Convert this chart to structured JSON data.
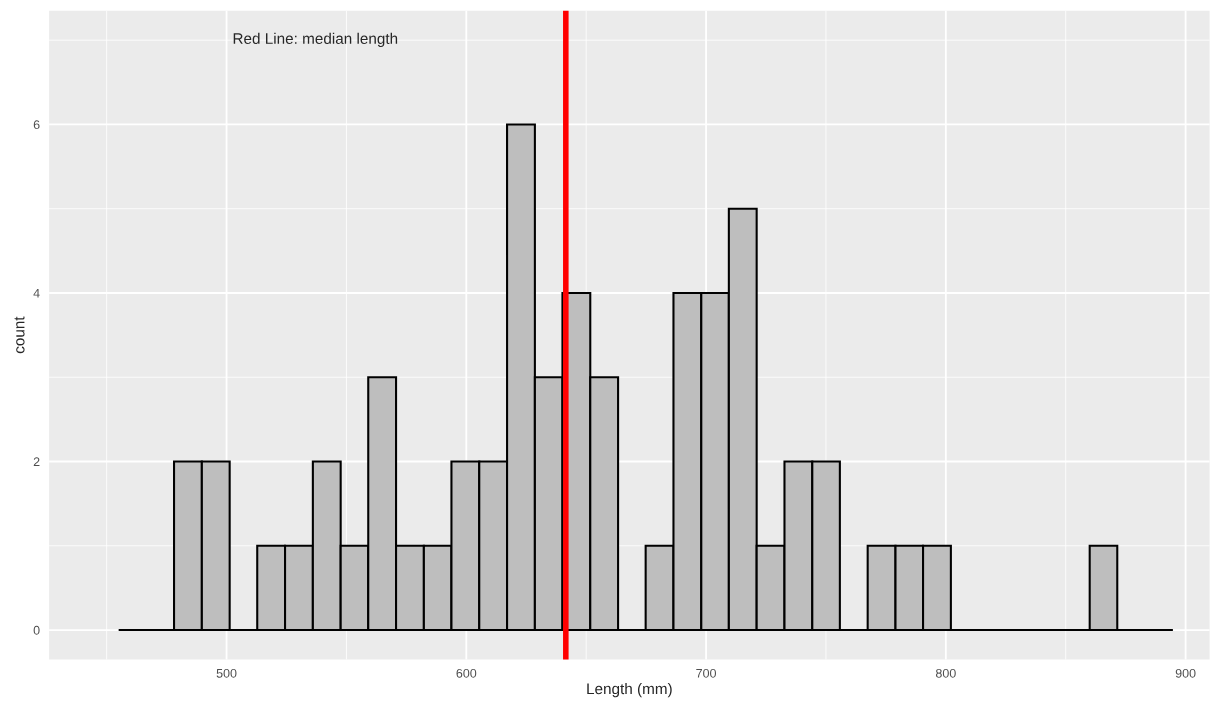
{
  "chart_data": {
    "type": "histogram",
    "xlabel": "Length (mm)",
    "ylabel": "count",
    "bins": [
      455.0,
      466.6,
      478.1,
      489.7,
      501.3,
      512.8,
      524.4,
      536.0,
      547.6,
      559.1,
      570.7,
      582.3,
      593.8,
      605.4,
      617.0,
      628.6,
      640.1,
      651.7,
      663.3,
      674.8,
      686.4,
      698.0,
      709.5,
      721.1,
      732.7,
      744.3,
      755.8,
      767.4,
      779.0,
      790.5,
      802.1,
      813.7,
      825.2,
      836.8,
      848.4,
      860.0,
      871.5,
      883.1,
      894.7
    ],
    "values": [
      0,
      0,
      2,
      2,
      0,
      1,
      1,
      2,
      1,
      3,
      1,
      1,
      2,
      2,
      6,
      3,
      4,
      3,
      0,
      1,
      4,
      4,
      5,
      1,
      2,
      2,
      0,
      1,
      1,
      1,
      0,
      0,
      0,
      0,
      0,
      1,
      0,
      0
    ],
    "color": "#bebebe",
    "xlim": [
      426,
      910
    ],
    "xticks": [
      500,
      600,
      700,
      800,
      900
    ],
    "ylim": [
      -0.35,
      7.35
    ],
    "yticks": [
      0,
      2,
      4,
      6
    ],
    "grid": true,
    "ref_lines": [
      {
        "axis": "x",
        "value": 641.5,
        "color": "#ff0000"
      }
    ],
    "annotations": [
      "Red Line: median length"
    ]
  }
}
